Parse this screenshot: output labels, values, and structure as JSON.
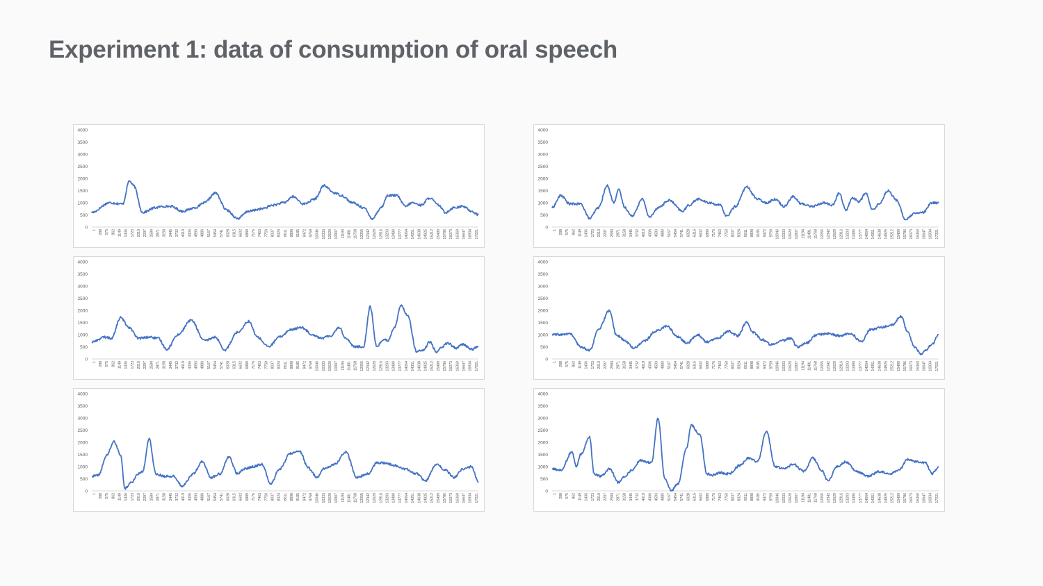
{
  "slide": {
    "title": "Experiment 1: data of consumption of oral speech"
  },
  "colors": {
    "line": "#4472c4",
    "background": "#fafafa",
    "title": "#5f6368",
    "axis_text": "#595959",
    "chart_border": "#d9d9d9"
  },
  "chart_data": [
    {
      "type": "line",
      "title": "",
      "xlabel": "",
      "ylabel": "",
      "ylim": [
        0,
        4000
      ],
      "yticks": [
        0,
        500,
        1000,
        1500,
        2000,
        2500,
        3000,
        3500,
        4000
      ],
      "grid": false,
      "legend": "none",
      "xtick_labels": [
        "1",
        "288",
        "575",
        "862",
        "1149",
        "1436",
        "1723",
        "2010",
        "2297",
        "2584",
        "2871",
        "3158",
        "3445",
        "3732",
        "4019",
        "4306",
        "4593",
        "4880",
        "5167",
        "5454",
        "5741",
        "6028",
        "6315",
        "6602",
        "6889",
        "7176",
        "7463",
        "7750",
        "8037",
        "8324",
        "8611",
        "8898",
        "9185",
        "9472",
        "9759",
        "10046",
        "10333",
        "10620",
        "10907",
        "11194",
        "11481",
        "11768",
        "12055",
        "12342",
        "12629",
        "12916",
        "13203",
        "13490",
        "13777",
        "14064",
        "14351",
        "14638",
        "14925",
        "15212",
        "15499",
        "15786",
        "16073",
        "16360",
        "16647",
        "16934",
        "17221"
      ],
      "x": [
        1,
        800,
        1400,
        1700,
        1900,
        2300,
        2900,
        3200,
        3600,
        4100,
        4700,
        5100,
        5600,
        6100,
        6600,
        7100,
        7700,
        8200,
        8700,
        9100,
        9600,
        10100,
        10500,
        11000,
        11300,
        11800,
        12300,
        12700,
        13100,
        13400,
        13800,
        14200,
        14500,
        14900,
        15300,
        15700,
        16000,
        16400,
        16800,
        17200,
        17500
      ],
      "y": [
        600,
        1000,
        950,
        1900,
        1700,
        600,
        800,
        850,
        850,
        650,
        800,
        1000,
        1400,
        700,
        350,
        650,
        750,
        900,
        1000,
        1250,
        950,
        1150,
        1700,
        1400,
        1300,
        1000,
        800,
        350,
        800,
        1300,
        1300,
        850,
        1000,
        900,
        1200,
        900,
        600,
        800,
        850,
        650,
        500
      ]
    },
    {
      "type": "line",
      "title": "",
      "xlabel": "",
      "ylabel": "",
      "ylim": [
        0,
        4000
      ],
      "yticks": [
        0,
        500,
        1000,
        1500,
        2000,
        2500,
        3000,
        3500,
        4000
      ],
      "grid": false,
      "legend": "none",
      "xtick_labels": [
        "1",
        "288",
        "575",
        "862",
        "1149",
        "1436",
        "1723",
        "2010",
        "2297",
        "2584",
        "2871",
        "3158",
        "3445",
        "3732",
        "4019",
        "4306",
        "4593",
        "4880",
        "5167",
        "5454",
        "5741",
        "6028",
        "6315",
        "6602",
        "6889",
        "7176",
        "7463",
        "7750",
        "8037",
        "8324",
        "8611",
        "8898",
        "9185",
        "9472",
        "9759",
        "10046",
        "10333",
        "10620",
        "10907",
        "11194",
        "11481",
        "11768",
        "12055",
        "12342",
        "12629",
        "12916",
        "13203",
        "13490",
        "13777",
        "14064",
        "14351",
        "14638",
        "14925",
        "15212",
        "15499",
        "15786",
        "16073",
        "16360",
        "16647",
        "16934",
        "17221"
      ],
      "x": [
        1,
        400,
        800,
        1300,
        1700,
        2100,
        2500,
        2800,
        3000,
        3300,
        3600,
        4100,
        4400,
        4800,
        5300,
        5900,
        6200,
        6600,
        7100,
        7600,
        7900,
        8300,
        8800,
        9300,
        9700,
        10100,
        10500,
        10900,
        11300,
        11800,
        12300,
        12700,
        13000,
        13300,
        13600,
        13900,
        14200,
        14500,
        14800,
        15200,
        15600,
        16000,
        16400,
        16800,
        17200
      ],
      "y": [
        800,
        1300,
        950,
        950,
        350,
        800,
        1700,
        1000,
        1550,
        800,
        450,
        1150,
        400,
        800,
        1100,
        650,
        900,
        1150,
        1000,
        900,
        450,
        850,
        1650,
        1150,
        1000,
        1150,
        850,
        1250,
        950,
        850,
        1000,
        900,
        1400,
        700,
        1200,
        1050,
        1400,
        700,
        950,
        1500,
        1100,
        300,
        550,
        600,
        1000
      ]
    },
    {
      "type": "line",
      "title": "",
      "xlabel": "",
      "ylabel": "",
      "ylim": [
        0,
        4000
      ],
      "yticks": [
        0,
        500,
        1000,
        1500,
        2000,
        2500,
        3000,
        3500,
        4000
      ],
      "grid": false,
      "legend": "none",
      "xtick_labels": [
        "1",
        "288",
        "575",
        "862",
        "1149",
        "1436",
        "1723",
        "2010",
        "2297",
        "2584",
        "2871",
        "3158",
        "3445",
        "3732",
        "4019",
        "4306",
        "4593",
        "4880",
        "5167",
        "5454",
        "5741",
        "6028",
        "6315",
        "6602",
        "6889",
        "7176",
        "7463",
        "7750",
        "8037",
        "8324",
        "8611",
        "8898",
        "9185",
        "9472",
        "9759",
        "10046",
        "10333",
        "10620",
        "10907",
        "11194",
        "11481",
        "11768",
        "12055",
        "12342",
        "12629",
        "12916",
        "13203",
        "13490",
        "13777",
        "14064",
        "14351",
        "14638",
        "14925",
        "15212",
        "15499",
        "15786",
        "16073",
        "16360",
        "16647",
        "16934",
        "17221"
      ],
      "x": [
        1,
        600,
        900,
        1300,
        1700,
        2100,
        2600,
        3000,
        3400,
        3900,
        4500,
        5100,
        5600,
        6000,
        6600,
        7100,
        7500,
        8000,
        8500,
        9000,
        9500,
        10000,
        10400,
        10800,
        11200,
        11500,
        11900,
        12300,
        12600,
        12900,
        13200,
        13400,
        13700,
        14000,
        14300,
        14700,
        15000,
        15300,
        15600,
        15800,
        16100,
        16500,
        16800,
        17200,
        17500
      ],
      "y": [
        700,
        900,
        850,
        1700,
        1300,
        850,
        900,
        850,
        400,
        1000,
        1600,
        750,
        900,
        350,
        1100,
        1550,
        900,
        500,
        900,
        1200,
        1300,
        1000,
        850,
        950,
        1300,
        850,
        500,
        500,
        2150,
        500,
        800,
        750,
        1300,
        2200,
        1800,
        300,
        350,
        700,
        300,
        450,
        650,
        450,
        600,
        400,
        500
      ]
    },
    {
      "type": "line",
      "title": "",
      "xlabel": "",
      "ylabel": "",
      "ylim": [
        0,
        4000
      ],
      "yticks": [
        0,
        500,
        1000,
        1500,
        2000,
        2500,
        3000,
        3500,
        4000
      ],
      "grid": false,
      "legend": "none",
      "xtick_labels": [
        "1",
        "288",
        "575",
        "862",
        "1149",
        "1436",
        "1723",
        "2010",
        "2297",
        "2584",
        "2871",
        "3158",
        "3445",
        "3732",
        "4019",
        "4306",
        "4593",
        "4880",
        "5167",
        "5454",
        "5741",
        "6028",
        "6315",
        "6602",
        "6889",
        "7176",
        "7463",
        "7750",
        "8037",
        "8324",
        "8611",
        "8898",
        "9185",
        "9472",
        "9759",
        "10046",
        "10333",
        "10620",
        "10907",
        "11194",
        "11481",
        "11768",
        "12055",
        "12342",
        "12629",
        "12916",
        "13203",
        "13490",
        "13777",
        "14064",
        "14351",
        "14638",
        "14925",
        "15212",
        "15499",
        "15786",
        "16073",
        "16360",
        "16647",
        "16934",
        "17221"
      ],
      "x": [
        1,
        500,
        800,
        1300,
        1700,
        2100,
        2600,
        2900,
        3300,
        3700,
        4200,
        4700,
        5200,
        5700,
        6100,
        6600,
        7000,
        7500,
        8000,
        8400,
        8800,
        9100,
        9500,
        9900,
        10400,
        10800,
        11100,
        11500,
        12000,
        12500,
        13000,
        13500,
        14000,
        14400,
        14900,
        15400,
        15800,
        16100,
        16400,
        16700,
        16900,
        17200,
        17500
      ],
      "y": [
        1000,
        1000,
        1050,
        500,
        350,
        1200,
        2000,
        1000,
        750,
        450,
        750,
        1150,
        1350,
        900,
        650,
        1000,
        700,
        850,
        1150,
        950,
        1500,
        1100,
        800,
        600,
        750,
        850,
        500,
        650,
        1000,
        1050,
        950,
        1050,
        700,
        1200,
        1300,
        1400,
        1750,
        1100,
        500,
        200,
        350,
        600,
        1000
      ]
    },
    {
      "type": "line",
      "title": "",
      "xlabel": "",
      "ylabel": "",
      "ylim": [
        0,
        4000
      ],
      "yticks": [
        0,
        500,
        1000,
        1500,
        2000,
        2500,
        3000,
        3500,
        4000
      ],
      "grid": false,
      "legend": "none",
      "xtick_labels": [
        "1",
        "288",
        "575",
        "862",
        "1149",
        "1436",
        "1723",
        "2010",
        "2297",
        "2584",
        "2871",
        "3158",
        "3445",
        "3732",
        "4019",
        "4306",
        "4593",
        "4880",
        "5167",
        "5454",
        "5741",
        "6028",
        "6315",
        "6602",
        "6889",
        "7176",
        "7463",
        "7750",
        "8037",
        "8324",
        "8611",
        "8898",
        "9185",
        "9472",
        "9759",
        "10046",
        "10333",
        "10620",
        "10907",
        "11194",
        "11481",
        "11768",
        "12055",
        "12342",
        "12629",
        "12916",
        "13203",
        "13490",
        "13777",
        "14064",
        "14351",
        "14638",
        "14925",
        "15212",
        "15499",
        "15786",
        "16073",
        "16360",
        "16647",
        "16934",
        "17221"
      ],
      "x": [
        1,
        300,
        700,
        1000,
        1300,
        1500,
        1800,
        2100,
        2300,
        2600,
        2900,
        3300,
        3700,
        4100,
        4600,
        5000,
        5400,
        5800,
        6200,
        6600,
        6900,
        7300,
        7700,
        8100,
        8500,
        9000,
        9400,
        9800,
        10200,
        10500,
        11000,
        11500,
        12000,
        12500,
        12900,
        13300,
        13700,
        14200,
        14700,
        15100,
        15600,
        16000,
        16400,
        16800,
        17200,
        17500
      ],
      "y": [
        600,
        650,
        1500,
        2050,
        1500,
        100,
        350,
        700,
        800,
        2150,
        700,
        600,
        600,
        200,
        700,
        1200,
        550,
        700,
        1400,
        700,
        900,
        1000,
        1100,
        300,
        900,
        1550,
        1650,
        950,
        550,
        900,
        1100,
        1600,
        550,
        700,
        1150,
        1150,
        1050,
        900,
        700,
        400,
        1100,
        850,
        550,
        900,
        1000,
        350
      ]
    },
    {
      "type": "line",
      "title": "",
      "xlabel": "",
      "ylabel": "",
      "ylim": [
        0,
        4000
      ],
      "yticks": [
        0,
        500,
        1000,
        1500,
        2000,
        2500,
        3000,
        3500,
        4000
      ],
      "grid": false,
      "legend": "none",
      "xtick_labels": [
        "1",
        "288",
        "575",
        "862",
        "1149",
        "1436",
        "1723",
        "2010",
        "2297",
        "2584",
        "2871",
        "3158",
        "3445",
        "3732",
        "4019",
        "4306",
        "4593",
        "4880",
        "5167",
        "5454",
        "5741",
        "6028",
        "6315",
        "6602",
        "6889",
        "7176",
        "7463",
        "7750",
        "8037",
        "8324",
        "8611",
        "8898",
        "9185",
        "9472",
        "9759",
        "10046",
        "10333",
        "10620",
        "10907",
        "11194",
        "11481",
        "11768",
        "12055",
        "12342",
        "12629",
        "12916",
        "13203",
        "13490",
        "13777",
        "14064",
        "14351",
        "14638",
        "14925",
        "15212",
        "15499",
        "15786",
        "16073",
        "16360",
        "16647",
        "16934",
        "17221"
      ],
      "x": [
        1,
        400,
        900,
        1100,
        1300,
        1700,
        1900,
        2200,
        2600,
        3000,
        3300,
        3600,
        4000,
        4500,
        4800,
        5100,
        5400,
        5700,
        6100,
        6300,
        6700,
        7000,
        7300,
        7600,
        8000,
        8500,
        8900,
        9300,
        9700,
        10100,
        10500,
        10900,
        11400,
        11800,
        12200,
        12500,
        12900,
        13300,
        13800,
        14300,
        14800,
        15300,
        15700,
        16100,
        16500,
        16900,
        17200,
        17500
      ],
      "y": [
        900,
        850,
        1600,
        1000,
        1500,
        2200,
        700,
        600,
        900,
        350,
        600,
        850,
        1250,
        1150,
        3000,
        500,
        0,
        300,
        1800,
        2700,
        2300,
        700,
        650,
        750,
        700,
        1050,
        1350,
        1200,
        2450,
        1000,
        900,
        1100,
        800,
        1350,
        850,
        400,
        1000,
        1200,
        800,
        600,
        800,
        700,
        850,
        1300,
        1200,
        1150,
        700,
        1000
      ]
    }
  ]
}
